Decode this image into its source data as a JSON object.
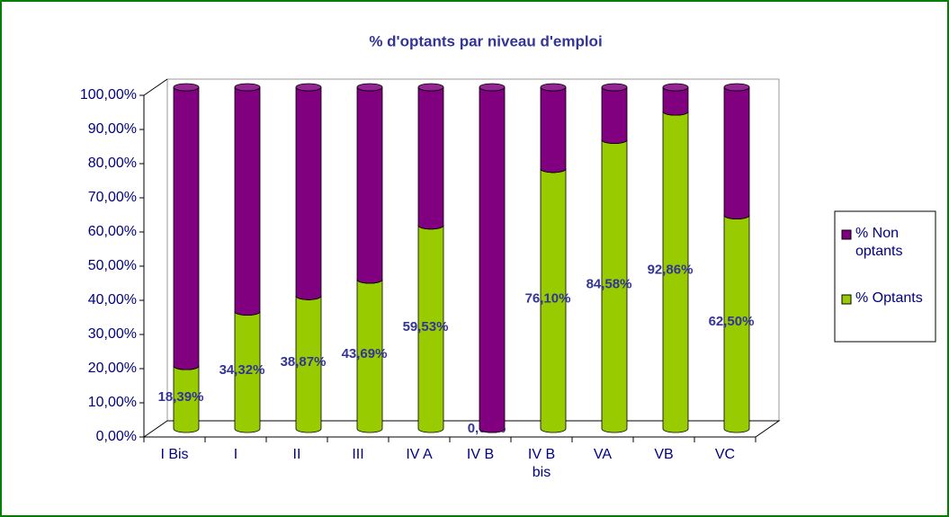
{
  "chart_data": {
    "type": "bar",
    "stacked": true,
    "title": "% d'optants par niveau d'emploi",
    "categories": [
      "I Bis",
      "I",
      "II",
      "III",
      "IV A",
      "IV B",
      "IV B bis",
      "VA",
      "VB",
      "VC"
    ],
    "series": [
      {
        "name": "% Optants",
        "color": "#99cc00",
        "values": [
          18.39,
          34.32,
          38.87,
          43.69,
          59.53,
          0,
          76.1,
          84.58,
          92.86,
          62.5
        ],
        "value_labels": [
          "18,39%",
          "34,32%",
          "38,87%",
          "43,69%",
          "59,53%",
          "0,00%",
          "76,10%",
          "84,58%",
          "92,86%",
          "62,50%"
        ]
      },
      {
        "name": "% Non optants",
        "color": "#800080",
        "values": [
          81.61,
          65.68,
          61.13,
          56.31,
          40.47,
          100,
          23.9,
          15.42,
          7.14,
          37.5
        ]
      }
    ],
    "ylim": [
      0,
      100
    ],
    "yticks": [
      {
        "value": 0,
        "label": "0,00%"
      },
      {
        "value": 10,
        "label": "10,00%"
      },
      {
        "value": 20,
        "label": "20,00%"
      },
      {
        "value": 30,
        "label": "30,00%"
      },
      {
        "value": 40,
        "label": "40,00%"
      },
      {
        "value": 50,
        "label": "50,00%"
      },
      {
        "value": 60,
        "label": "60,00%"
      },
      {
        "value": 70,
        "label": "70,00%"
      },
      {
        "value": 80,
        "label": "80,00%"
      },
      {
        "value": 90,
        "label": "90,00%"
      },
      {
        "value": 100,
        "label": "100,00%"
      }
    ],
    "legend": "right"
  }
}
